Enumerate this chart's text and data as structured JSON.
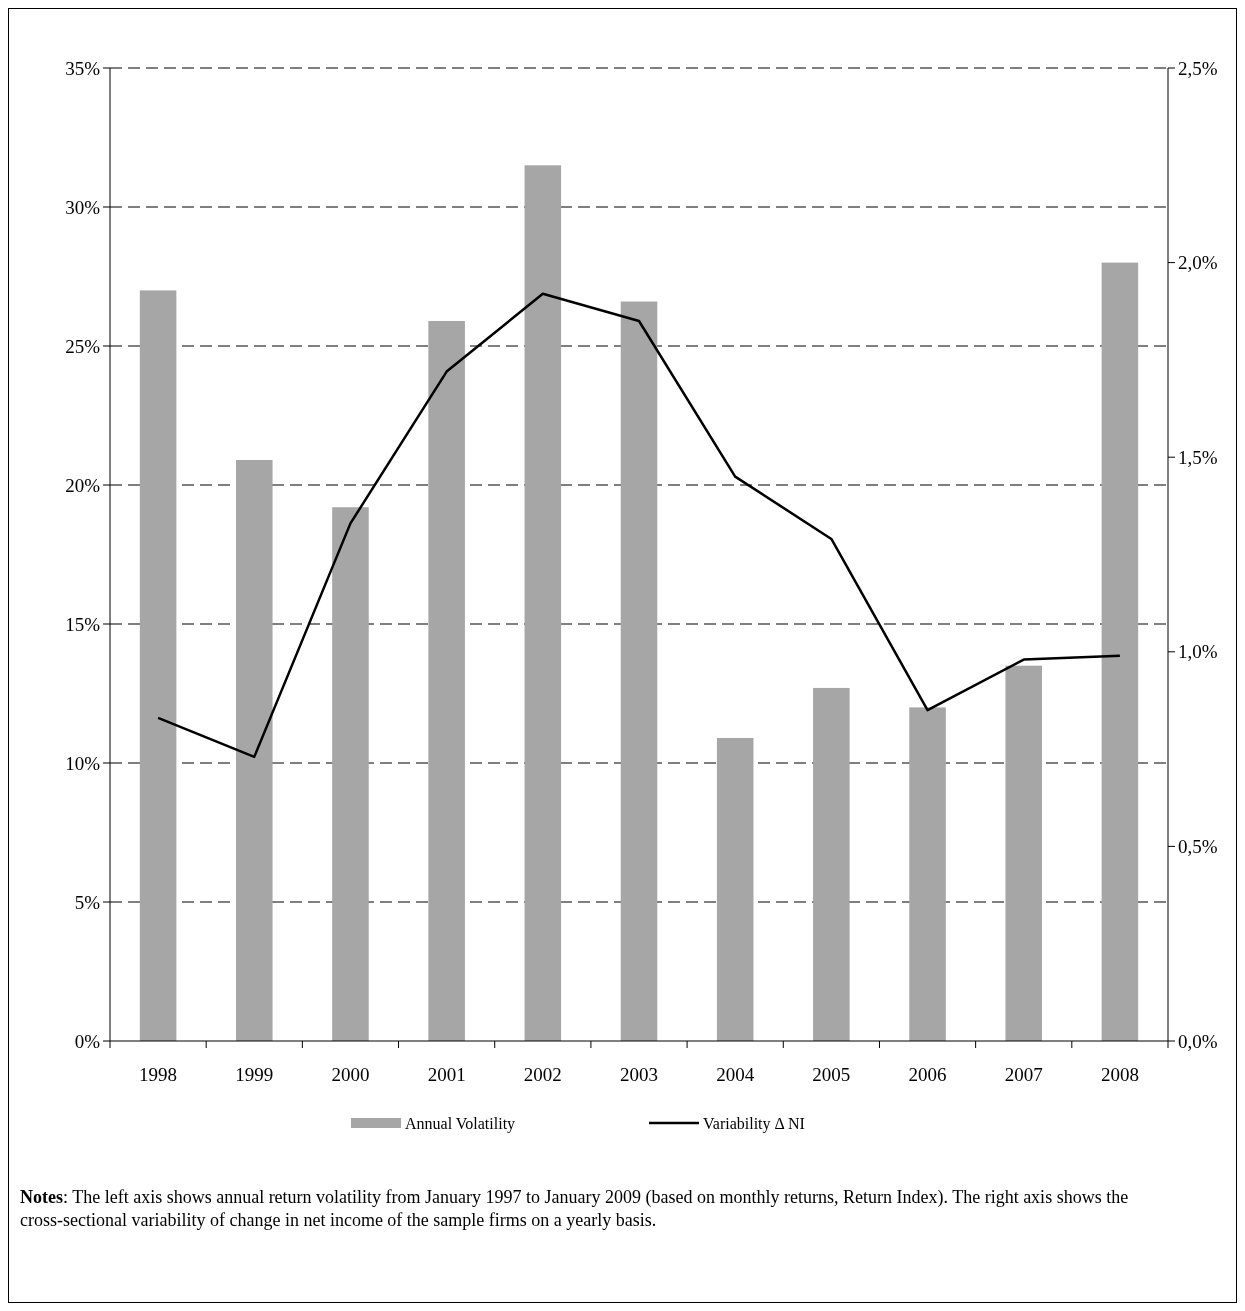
{
  "chart_data": {
    "type": "bar",
    "categories": [
      "1998",
      "1999",
      "2000",
      "2001",
      "2002",
      "2003",
      "2004",
      "2005",
      "2006",
      "2007",
      "2008"
    ],
    "series": [
      {
        "name": "Annual Volatility",
        "color": "#a6a6a6",
        "values": [
          27.0,
          20.9,
          19.2,
          25.9,
          31.5,
          26.6,
          10.9,
          12.7,
          12.0,
          13.5,
          28.0
        ]
      },
      {
        "name": "Variability Δ NI",
        "type": "line",
        "axis": "y2",
        "color": "#000000",
        "values": [
          0.83,
          0.73,
          1.33,
          1.72,
          1.92,
          1.85,
          1.45,
          1.29,
          0.85,
          0.98,
          0.99
        ]
      }
    ],
    "ylim": [
      0,
      35
    ],
    "yticks": [
      {
        "value": 0,
        "label": "0%"
      },
      {
        "value": 5,
        "label": "5%"
      },
      {
        "value": 10,
        "label": "10%"
      },
      {
        "value": 15,
        "label": "15%"
      },
      {
        "value": 20,
        "label": "20%"
      },
      {
        "value": 25,
        "label": "25%"
      },
      {
        "value": 30,
        "label": "30%"
      },
      {
        "value": 35,
        "label": "35%"
      }
    ],
    "y2lim": [
      0,
      2.5
    ],
    "y2ticks": [
      {
        "value": 0,
        "label": "0,0%"
      },
      {
        "value": 0.5,
        "label": "0,5%"
      },
      {
        "value": 1,
        "label": "1,0%"
      },
      {
        "value": 1.5,
        "label": "1,5%"
      },
      {
        "value": 2,
        "label": "2,0%"
      },
      {
        "value": 2.5,
        "label": "2,5%"
      }
    ],
    "grid": "y",
    "line_style": "solid",
    "legend": "bottom",
    "annotations": [
      "Notes: The left axis shows annual return volatility from January 1997 to January 2009 (based on monthly returns, Return Index). The right axis shows the cross-sectional variability of change in net income of the sample firms on a yearly basis."
    ]
  }
}
